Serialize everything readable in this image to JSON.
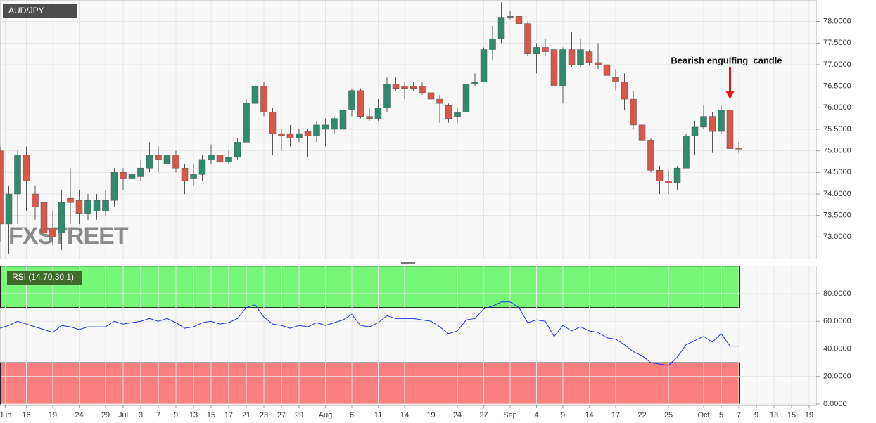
{
  "chart_data": [
    {
      "type": "candlestick",
      "title": "AUD/JPY",
      "watermark": "FXSTREET",
      "annotation": {
        "text": "Bearish engulfing  candle",
        "index": 83,
        "color": "#ee1111"
      },
      "up_color": "#2f8a6f",
      "down_color": "#d9574a",
      "open": [
        75.0,
        73.3,
        74.0,
        74.9,
        74.0,
        73.8,
        73.2,
        73.1,
        73.9,
        73.85,
        73.55,
        73.6,
        73.6,
        73.85,
        74.5,
        74.35,
        74.4,
        74.6,
        74.9,
        74.7,
        74.9,
        74.6,
        74.35,
        74.45,
        74.8,
        74.9,
        74.75,
        74.85,
        75.2,
        76.1,
        76.5,
        75.9,
        75.4,
        75.4,
        75.3,
        75.45,
        75.35,
        75.5,
        75.5,
        75.5,
        75.95,
        76.4,
        75.8,
        75.75,
        76.0,
        76.55,
        76.5,
        76.5,
        76.5,
        76.35,
        76.2,
        76.05,
        75.8,
        75.9,
        76.55,
        76.6,
        77.35,
        77.6,
        78.1,
        78.12,
        77.95,
        77.25,
        77.4,
        77.35,
        76.5,
        77.35,
        77.0,
        77.3,
        77.05,
        77.0,
        76.7,
        76.6,
        76.2,
        75.6,
        75.25,
        74.55,
        74.3,
        74.25,
        74.6,
        75.35,
        75.55,
        75.8,
        75.45,
        75.95,
        75.06
      ],
      "high": [
        75.1,
        74.2,
        75.0,
        75.1,
        74.2,
        74.0,
        73.6,
        74.1,
        74.6,
        74.1,
        74.0,
        74.0,
        74.1,
        74.6,
        74.6,
        74.6,
        74.8,
        75.2,
        75.1,
        75.05,
        75.0,
        74.7,
        74.7,
        74.9,
        75.15,
        75.0,
        75.0,
        75.3,
        76.2,
        76.9,
        76.6,
        76.0,
        75.5,
        75.6,
        75.5,
        75.5,
        75.7,
        75.75,
        75.8,
        76.0,
        76.45,
        76.45,
        76.0,
        76.2,
        76.7,
        76.7,
        76.6,
        76.6,
        76.6,
        76.7,
        76.3,
        76.1,
        76.0,
        76.6,
        76.8,
        77.4,
        77.9,
        78.45,
        78.25,
        78.2,
        78.0,
        77.5,
        77.6,
        77.7,
        77.4,
        77.75,
        77.6,
        77.35,
        77.5,
        77.1,
        76.9,
        76.8,
        76.4,
        75.7,
        75.3,
        74.65,
        74.55,
        74.65,
        75.4,
        75.7,
        76.05,
        75.9,
        76.05,
        76.15,
        75.2
      ],
      "low": [
        72.9,
        72.6,
        73.3,
        73.6,
        73.4,
        72.9,
        72.8,
        72.7,
        73.3,
        73.3,
        73.4,
        73.4,
        73.5,
        73.7,
        74.1,
        74.2,
        74.3,
        74.5,
        74.5,
        74.6,
        74.5,
        74.0,
        74.2,
        74.3,
        74.7,
        74.7,
        74.7,
        74.8,
        75.2,
        76.0,
        75.8,
        74.9,
        75.0,
        75.1,
        75.2,
        74.85,
        75.2,
        75.1,
        75.4,
        75.4,
        75.8,
        75.75,
        75.7,
        75.7,
        75.9,
        76.4,
        76.2,
        76.4,
        76.3,
        76.1,
        75.65,
        75.65,
        75.65,
        75.9,
        76.5,
        76.6,
        77.1,
        77.5,
        78.05,
        77.9,
        77.2,
        76.8,
        77.2,
        76.5,
        76.1,
        76.95,
        76.95,
        77.0,
        76.9,
        76.4,
        76.4,
        75.95,
        75.5,
        75.2,
        74.5,
        74.0,
        74.0,
        74.1,
        74.6,
        74.9,
        75.5,
        74.95,
        75.4,
        75.0,
        74.95
      ],
      "close": [
        73.3,
        74.0,
        74.9,
        74.3,
        73.7,
        73.1,
        73.0,
        73.8,
        73.8,
        73.55,
        73.85,
        73.85,
        73.85,
        74.5,
        74.35,
        74.45,
        74.6,
        74.9,
        74.8,
        74.9,
        74.6,
        74.3,
        74.45,
        74.8,
        74.9,
        74.75,
        74.85,
        75.2,
        76.1,
        76.5,
        75.9,
        75.4,
        75.35,
        75.3,
        75.4,
        75.35,
        75.6,
        75.6,
        75.75,
        75.95,
        76.4,
        75.8,
        75.75,
        76.0,
        76.55,
        76.45,
        76.45,
        76.45,
        76.35,
        76.2,
        76.1,
        75.75,
        75.9,
        76.55,
        76.6,
        77.35,
        77.6,
        78.1,
        78.12,
        77.95,
        77.25,
        77.4,
        77.3,
        76.5,
        77.35,
        77.0,
        77.35,
        77.05,
        77.0,
        76.75,
        76.6,
        76.2,
        75.6,
        75.25,
        74.55,
        74.3,
        74.25,
        74.6,
        75.35,
        75.55,
        75.8,
        75.45,
        75.95,
        75.05,
        75.04
      ],
      "xlim": [
        0,
        92.8
      ],
      "ylim": [
        72.5,
        78.5
      ],
      "yticks": [
        {
          "value": 73.0,
          "label": "73.0000"
        },
        {
          "value": 73.5,
          "label": "73.5000"
        },
        {
          "value": 74.0,
          "label": "74.0000"
        },
        {
          "value": 74.5,
          "label": "74.5000"
        },
        {
          "value": 75.0,
          "label": "75.0000"
        },
        {
          "value": 75.5,
          "label": "75.5000"
        },
        {
          "value": 76.0,
          "label": "76.0000"
        },
        {
          "value": 76.5,
          "label": "76.5000"
        },
        {
          "value": 77.0,
          "label": "77.0000"
        },
        {
          "value": 77.5,
          "label": "77.5000"
        },
        {
          "value": 78.0,
          "label": "78.0000"
        }
      ],
      "grid": true
    },
    {
      "type": "line",
      "title": "RSI (14,70,30,1)",
      "color": "#2233dd",
      "values": [
        55,
        57,
        60,
        58,
        56,
        54,
        52,
        57,
        56,
        54,
        56,
        56,
        56,
        60,
        58,
        59,
        60,
        62,
        60,
        62,
        59,
        55,
        56,
        59,
        60,
        58,
        59,
        62,
        70,
        72,
        63,
        58,
        57,
        55,
        57,
        56,
        59,
        57,
        59,
        61,
        65,
        57,
        56,
        59,
        64,
        62,
        62,
        62,
        61,
        60,
        56,
        51,
        53,
        61,
        62,
        69,
        71,
        74,
        74,
        70,
        59,
        61,
        60,
        49,
        57,
        53,
        56,
        53,
        52,
        48,
        47,
        43,
        38,
        35,
        30,
        29,
        28,
        34,
        43,
        46,
        49,
        45,
        51,
        42,
        42
      ],
      "zones": [
        {
          "from": 70,
          "to": 100,
          "color": "#77f777"
        },
        {
          "from": 0,
          "to": 30,
          "color": "#fb7f7f"
        }
      ],
      "xlim": [
        0,
        92.8
      ],
      "ylim": [
        0,
        100
      ],
      "yticks": [
        {
          "value": 0,
          "label": "0.0000"
        },
        {
          "value": 20,
          "label": "20.0000"
        },
        {
          "value": 40,
          "label": "40.0000"
        },
        {
          "value": 60,
          "label": "60.0000"
        },
        {
          "value": 80,
          "label": "80.0000"
        }
      ],
      "xticks": [
        {
          "value": 0.6,
          "label": "Jun"
        },
        {
          "value": 3,
          "label": "16"
        },
        {
          "value": 6,
          "label": "19"
        },
        {
          "value": 9,
          "label": "24"
        },
        {
          "value": 12,
          "label": "29"
        },
        {
          "value": 14,
          "label": "Jul"
        },
        {
          "value": 16,
          "label": "3"
        },
        {
          "value": 18,
          "label": "7"
        },
        {
          "value": 20,
          "label": "9"
        },
        {
          "value": 22,
          "label": "13"
        },
        {
          "value": 24,
          "label": "15"
        },
        {
          "value": 26,
          "label": "17"
        },
        {
          "value": 28,
          "label": "21"
        },
        {
          "value": 30,
          "label": "23"
        },
        {
          "value": 32,
          "label": "27"
        },
        {
          "value": 34,
          "label": "29"
        },
        {
          "value": 37,
          "label": "Aug"
        },
        {
          "value": 40,
          "label": "6"
        },
        {
          "value": 43,
          "label": "11"
        },
        {
          "value": 46,
          "label": "14"
        },
        {
          "value": 49,
          "label": "19"
        },
        {
          "value": 52,
          "label": "24"
        },
        {
          "value": 55,
          "label": "27"
        },
        {
          "value": 58,
          "label": "Sep"
        },
        {
          "value": 61,
          "label": "4"
        },
        {
          "value": 64,
          "label": "9"
        },
        {
          "value": 67,
          "label": "14"
        },
        {
          "value": 70,
          "label": "17"
        },
        {
          "value": 73,
          "label": "22"
        },
        {
          "value": 76,
          "label": "25"
        },
        {
          "value": 80,
          "label": "Oct"
        },
        {
          "value": 82,
          "label": "5"
        },
        {
          "value": 84,
          "label": "7"
        },
        {
          "value": 86,
          "label": "9"
        },
        {
          "value": 88,
          "label": "13"
        },
        {
          "value": 90,
          "label": "15"
        },
        {
          "value": 92,
          "label": "19"
        }
      ],
      "grid": true
    }
  ]
}
